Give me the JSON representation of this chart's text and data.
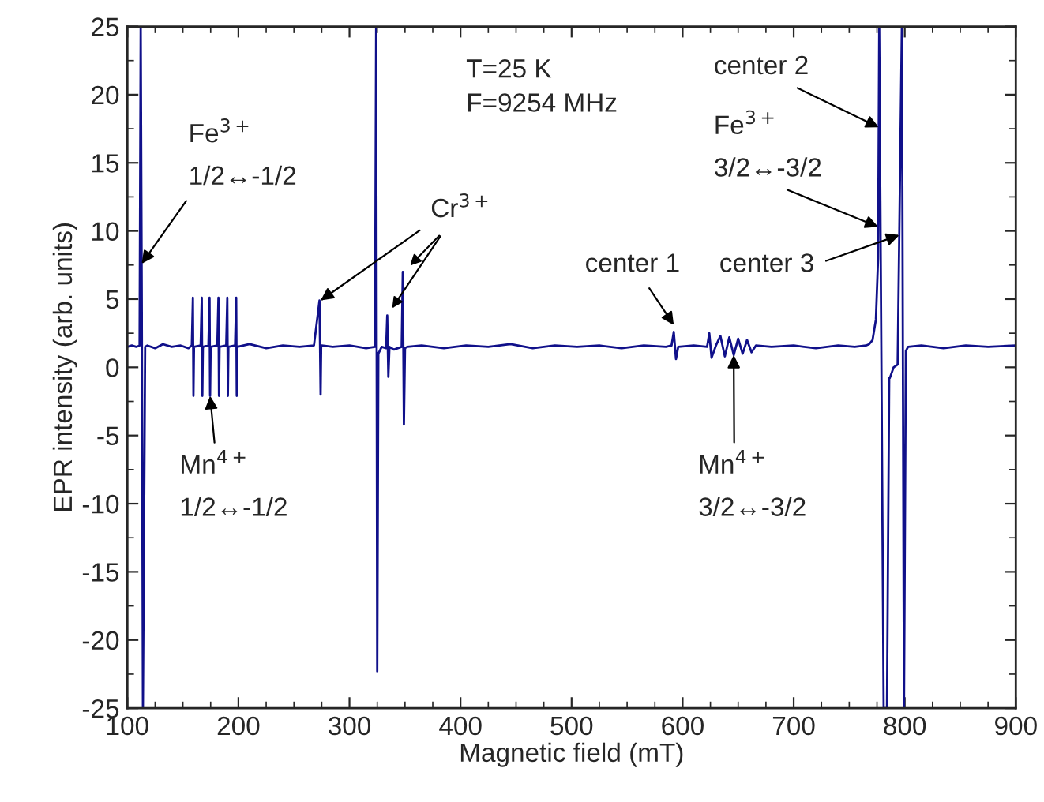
{
  "chart_data": {
    "type": "line",
    "xlabel": "Magnetic field (mT)",
    "ylabel": "EPR intensity (arb. units)",
    "xlim": [
      100,
      900
    ],
    "ylim": [
      -25,
      25
    ],
    "xticks": [
      100,
      200,
      300,
      400,
      500,
      600,
      700,
      800,
      900
    ],
    "yticks": [
      -25,
      -20,
      -15,
      -10,
      -5,
      0,
      5,
      10,
      15,
      20,
      25
    ],
    "grid": false,
    "legend": false,
    "marker": "none",
    "line_style": "solid",
    "series": [
      {
        "color": "#10108a",
        "x": [
          100,
          104,
          108,
          111,
          112,
          113,
          114,
          115,
          116,
          118,
          125,
          132,
          140,
          148,
          155,
          158,
          159,
          159.5,
          160,
          166,
          167,
          167.5,
          168,
          173,
          174,
          174.5,
          175,
          181,
          182,
          182.5,
          183,
          189,
          190,
          190.5,
          191,
          197,
          198,
          198.5,
          199,
          210,
          225,
          240,
          255,
          268,
          273,
          274,
          274.5,
          275,
          285,
          300,
          315,
          323,
          324,
          325,
          326,
          329,
          333,
          334,
          335,
          336,
          340,
          347,
          348,
          349,
          350,
          352,
          365,
          385,
          405,
          425,
          445,
          465,
          485,
          505,
          525,
          545,
          565,
          585,
          590,
          592,
          594,
          596,
          610,
          622,
          624,
          626,
          630,
          634,
          638,
          642,
          646,
          650,
          654,
          658,
          662,
          666,
          680,
          700,
          720,
          740,
          755,
          765,
          768,
          771,
          774,
          776,
          777,
          781,
          784,
          786,
          786.5,
          790,
          793.6,
          797.4,
          799.3,
          801,
          803,
          815,
          835,
          855,
          875,
          900
        ],
        "values": [
          1.5,
          1.6,
          1.5,
          1.6,
          25,
          4.5,
          -25,
          -12,
          1.5,
          1.6,
          1.4,
          1.7,
          1.5,
          1.6,
          1.4,
          1.6,
          5.1,
          -2.1,
          1.5,
          1.6,
          5.1,
          -2.1,
          1.5,
          1.6,
          5.1,
          -2.1,
          1.5,
          1.6,
          5.1,
          -2.1,
          1.5,
          1.6,
          5.1,
          -2.1,
          1.5,
          1.6,
          5.1,
          -2.1,
          1.5,
          1.7,
          1.4,
          1.6,
          1.5,
          1.6,
          4.9,
          -2.0,
          1.5,
          1.6,
          1.5,
          1.6,
          1.4,
          1.5,
          25,
          -22.3,
          1.0,
          1.5,
          1.4,
          3.8,
          -0.7,
          1.5,
          1.3,
          1.5,
          7.0,
          -4.2,
          1.4,
          1.5,
          1.6,
          1.4,
          1.6,
          1.5,
          1.7,
          1.4,
          1.6,
          1.5,
          1.6,
          1.4,
          1.6,
          1.5,
          1.6,
          2.6,
          0.6,
          1.5,
          1.6,
          1.5,
          2.5,
          0.7,
          1.6,
          2.3,
          0.8,
          2.2,
          0.9,
          2.1,
          1.0,
          2.0,
          1.1,
          1.6,
          1.5,
          1.6,
          1.4,
          1.6,
          1.5,
          1.6,
          1.7,
          2.0,
          3.5,
          8.0,
          25,
          -25,
          -25,
          -0.8,
          -0.8,
          0.0,
          0.2,
          25,
          -25,
          1.2,
          1.5,
          1.6,
          1.4,
          1.6,
          1.5,
          1.6
        ]
      }
    ],
    "annotations": [
      "T=25 K\nF=9254 MHz",
      "Fe$^{3+}$",
      {
        "text": "1/2↔-1/2",
        "x": 112.9,
        "y": 7.6
      },
      {
        "text": "Cr$^{3+}$",
        "x": 274,
        "y": 4.9
      },
      {
        "text": "Mn$^{4+}$",
        "x": 174.5,
        "y": -2.1
      },
      "1/2↔-1/2",
      {
        "text": "center 1",
        "x": 592,
        "y": 3.1
      },
      {
        "text": "Mn$^{4+}$",
        "x": 646,
        "y": 0.9
      },
      "3/2↔-3/2",
      {
        "text": "center 2",
        "x": 776.6,
        "y": 17.6
      },
      "Fe$^{3+}$",
      {
        "text": "3/2↔-3/2",
        "x": 776.1,
        "y": 10.3
      },
      {
        "text": "center 3",
        "x": 795.1,
        "y": 9.7
      }
    ]
  }
}
